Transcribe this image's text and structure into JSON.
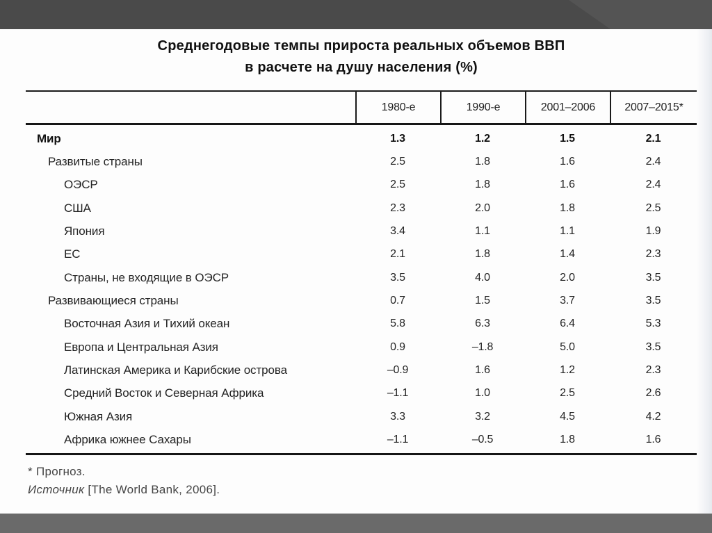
{
  "slide": {
    "title_line1": "Среднегодовые темпы прироста реальных объемов ВВП",
    "title_line2": "в расчете на душу населения (%)"
  },
  "table": {
    "columns": [
      "1980-е",
      "1990-е",
      "2001–2006",
      "2007–2015*"
    ],
    "rows": [
      {
        "label": "Мир",
        "indent": 0,
        "bold": true,
        "values": [
          "1.3",
          "1.2",
          "1.5",
          "2.1"
        ]
      },
      {
        "label": "Развитые страны",
        "indent": 1,
        "bold": false,
        "values": [
          "2.5",
          "1.8",
          "1.6",
          "2.4"
        ]
      },
      {
        "label": "ОЭСР",
        "indent": 2,
        "bold": false,
        "values": [
          "2.5",
          "1.8",
          "1.6",
          "2.4"
        ]
      },
      {
        "label": "США",
        "indent": 2,
        "bold": false,
        "values": [
          "2.3",
          "2.0",
          "1.8",
          "2.5"
        ]
      },
      {
        "label": "Япония",
        "indent": 2,
        "bold": false,
        "values": [
          "3.4",
          "1.1",
          "1.1",
          "1.9"
        ]
      },
      {
        "label": "ЕС",
        "indent": 2,
        "bold": false,
        "values": [
          "2.1",
          "1.8",
          "1.4",
          "2.3"
        ]
      },
      {
        "label": "Страны, не входящие в ОЭСР",
        "indent": 2,
        "bold": false,
        "values": [
          "3.5",
          "4.0",
          "2.0",
          "3.5"
        ]
      },
      {
        "label": "Развивающиеся страны",
        "indent": 1,
        "bold": false,
        "values": [
          "0.7",
          "1.5",
          "3.7",
          "3.5"
        ]
      },
      {
        "label": "Восточная Азия и Тихий океан",
        "indent": 2,
        "bold": false,
        "values": [
          "5.8",
          "6.3",
          "6.4",
          "5.3"
        ]
      },
      {
        "label": "Европа и Центральная Азия",
        "indent": 2,
        "bold": false,
        "values": [
          "0.9",
          "–1.8",
          "5.0",
          "3.5"
        ]
      },
      {
        "label": "Латинская Америка и Карибские острова",
        "indent": 2,
        "bold": false,
        "values": [
          "–0.9",
          "1.6",
          "1.2",
          "2.3"
        ]
      },
      {
        "label": "Средний Восток и Северная Африка",
        "indent": 2,
        "bold": false,
        "values": [
          "–1.1",
          "1.0",
          "2.5",
          "2.6"
        ]
      },
      {
        "label": "Южная Азия",
        "indent": 2,
        "bold": false,
        "values": [
          "3.3",
          "3.2",
          "4.5",
          "4.2"
        ]
      },
      {
        "label": "Африка южнее Сахары",
        "indent": 2,
        "bold": false,
        "values": [
          "–1.1",
          "–0.5",
          "1.8",
          "1.6"
        ]
      }
    ]
  },
  "footnotes": {
    "forecast_note": "* Прогноз.",
    "source_label": "Источник",
    "source_rest": " [The World Bank, 2006]."
  },
  "colors": {
    "top_bar": "#4a4a4a",
    "top_bar_facet": "#545454",
    "bottom_bar": "#6a6a6a",
    "slide_background": "#fdfdfd",
    "table_line": "#1a1a1a",
    "text": "#242424"
  }
}
